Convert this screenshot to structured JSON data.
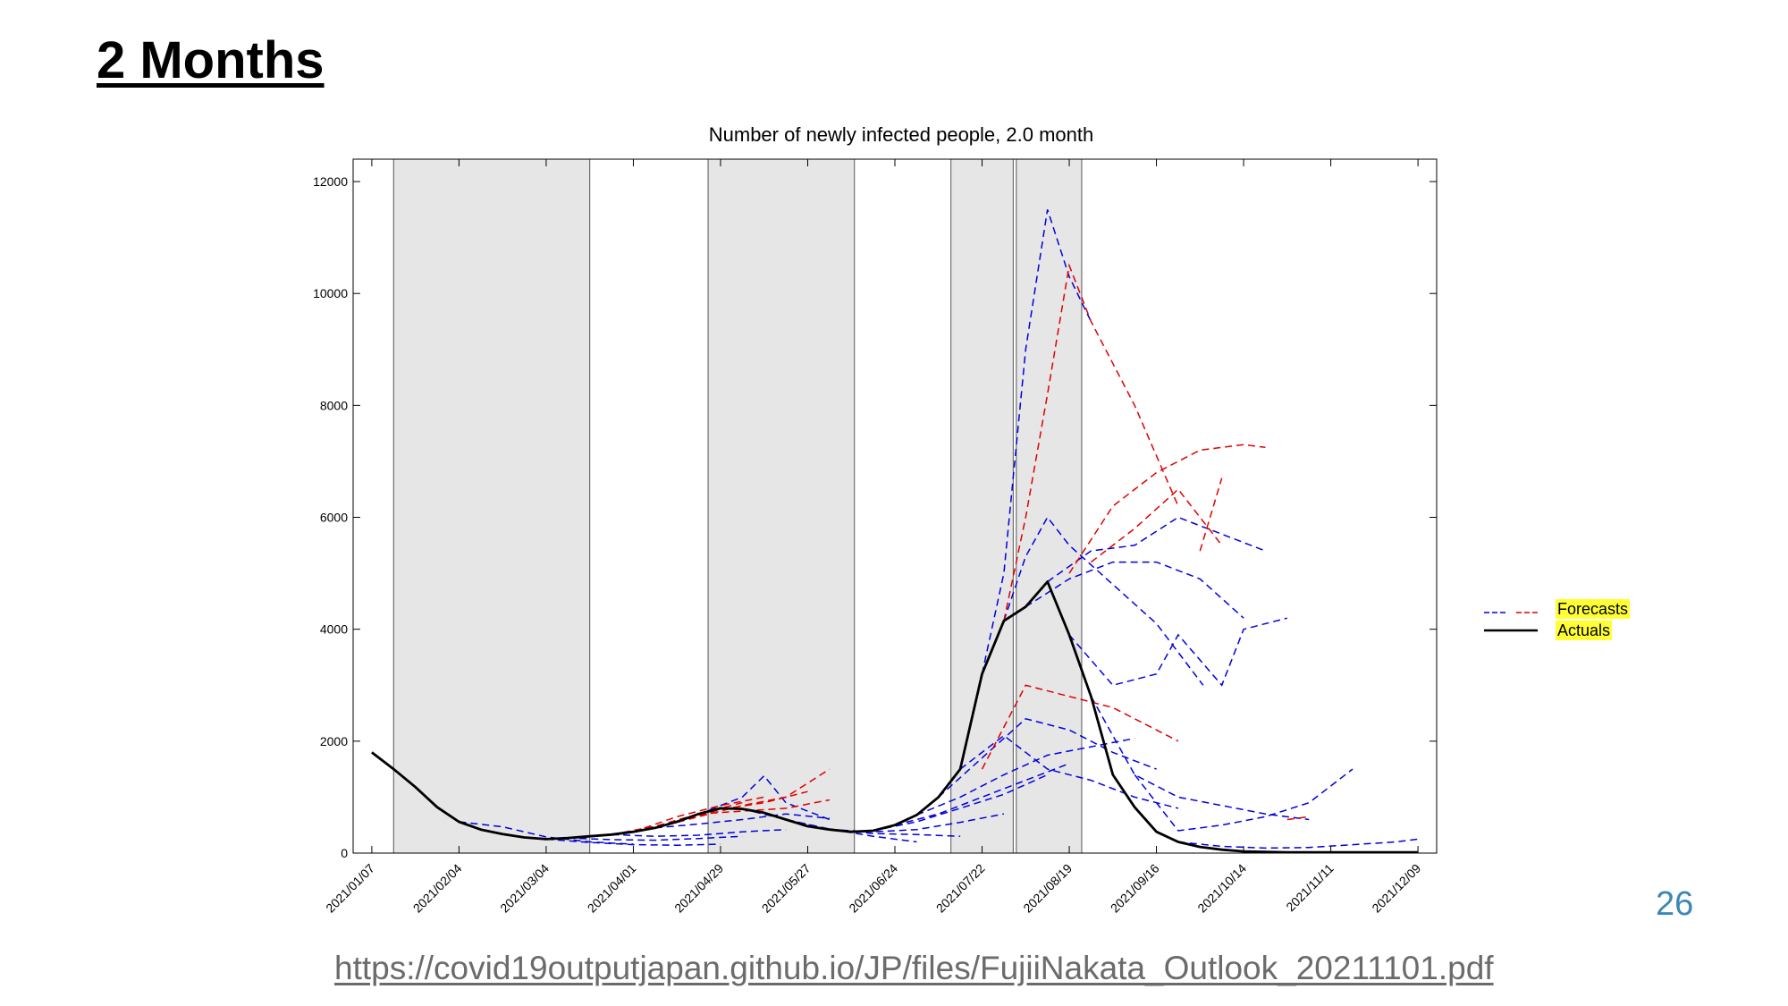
{
  "slide": {
    "title": "2 Months",
    "page_number": "26",
    "source": "https://covid19outputjapan.github.io/JP/files/FujiiNakata_Outlook_20211101.pdf"
  },
  "colors": {
    "forecast_blue": "#0000dd",
    "forecast_red": "#e00000",
    "actual": "#000000",
    "shade": "#e6e6e6",
    "highlight": "#ffff33"
  },
  "legend": {
    "forecasts_label": "Forecasts",
    "actuals_label": "Actuals",
    "forecast_marker": "—, — :",
    "actual_marker": ":"
  },
  "chart_data": {
    "type": "line",
    "title": "Number of newly infected people, 2.0 month",
    "xlabel": "",
    "ylabel": "",
    "x_domain": [
      "2021-01-01",
      "2021-12-15"
    ],
    "ylim": [
      0,
      12400
    ],
    "y_ticks": [
      0,
      2000,
      4000,
      6000,
      8000,
      10000,
      12000
    ],
    "x_ticks": [
      "2021/01/07",
      "2021/02/04",
      "2021/03/04",
      "2021/04/01",
      "2021/04/29",
      "2021/05/27",
      "2021/06/24",
      "2021/07/22",
      "2021/08/19",
      "2021/09/16",
      "2021/10/14",
      "2021/11/11",
      "2021/12/09"
    ],
    "grid": false,
    "legend_position": "right",
    "shaded_periods": [
      {
        "start": "2021-01-14",
        "end": "2021-03-18"
      },
      {
        "start": "2021-04-25",
        "end": "2021-06-11"
      },
      {
        "start": "2021-07-12",
        "end": "2021-08-01"
      },
      {
        "start": "2021-08-02",
        "end": "2021-08-23"
      }
    ],
    "actuals": {
      "name": "Actuals",
      "x": [
        "2021-01-07",
        "2021-01-14",
        "2021-01-21",
        "2021-01-28",
        "2021-02-04",
        "2021-02-11",
        "2021-02-18",
        "2021-02-25",
        "2021-03-04",
        "2021-03-11",
        "2021-03-18",
        "2021-03-25",
        "2021-04-01",
        "2021-04-08",
        "2021-04-15",
        "2021-04-22",
        "2021-04-29",
        "2021-05-06",
        "2021-05-13",
        "2021-05-20",
        "2021-05-27",
        "2021-06-03",
        "2021-06-10",
        "2021-06-17",
        "2021-06-24",
        "2021-07-01",
        "2021-07-08",
        "2021-07-15",
        "2021-07-22",
        "2021-07-29",
        "2021-08-05",
        "2021-08-12",
        "2021-08-19",
        "2021-08-26",
        "2021-09-02",
        "2021-09-09",
        "2021-09-16",
        "2021-09-23",
        "2021-09-30",
        "2021-10-07",
        "2021-10-14",
        "2021-10-21",
        "2021-10-28",
        "2021-11-04",
        "2021-11-11",
        "2021-11-18",
        "2021-11-25",
        "2021-12-02",
        "2021-12-09"
      ],
      "y": [
        1800,
        1500,
        1180,
        820,
        560,
        420,
        340,
        280,
        250,
        270,
        300,
        330,
        380,
        450,
        560,
        700,
        800,
        790,
        720,
        600,
        480,
        420,
        380,
        400,
        500,
        680,
        1000,
        1500,
        3200,
        4150,
        4400,
        4850,
        3900,
        2800,
        1400,
        820,
        380,
        200,
        110,
        60,
        30,
        20,
        15,
        15,
        15,
        15,
        15,
        15,
        15
      ]
    },
    "forecasts_blue": [
      {
        "x": [
          "2021-02-04",
          "2021-02-18",
          "2021-03-04",
          "2021-03-18",
          "2021-04-01"
        ],
        "y": [
          560,
          470,
          290,
          200,
          160
        ]
      },
      {
        "x": [
          "2021-03-04",
          "2021-03-18",
          "2021-04-01",
          "2021-04-15",
          "2021-04-29"
        ],
        "y": [
          250,
          190,
          150,
          140,
          160
        ]
      },
      {
        "x": [
          "2021-03-11",
          "2021-03-25",
          "2021-04-08",
          "2021-04-22",
          "2021-05-06"
        ],
        "y": [
          270,
          240,
          230,
          260,
          300
        ]
      },
      {
        "x": [
          "2021-03-25",
          "2021-04-08",
          "2021-04-22",
          "2021-05-06",
          "2021-05-20"
        ],
        "y": [
          330,
          300,
          320,
          380,
          420
        ]
      },
      {
        "x": [
          "2021-04-08",
          "2021-04-22",
          "2021-05-06",
          "2021-05-20",
          "2021-06-03"
        ],
        "y": [
          450,
          520,
          600,
          700,
          620
        ]
      },
      {
        "x": [
          "2021-04-22",
          "2021-05-06",
          "2021-05-13",
          "2021-05-20",
          "2021-06-03"
        ],
        "y": [
          700,
          1000,
          1380,
          900,
          600
        ]
      },
      {
        "x": [
          "2021-05-06",
          "2021-05-20",
          "2021-06-03",
          "2021-06-17",
          "2021-07-01"
        ],
        "y": [
          790,
          600,
          430,
          300,
          200
        ]
      },
      {
        "x": [
          "2021-05-20",
          "2021-06-03",
          "2021-06-17",
          "2021-07-01",
          "2021-07-15"
        ],
        "y": [
          600,
          420,
          350,
          330,
          300
        ]
      },
      {
        "x": [
          "2021-06-03",
          "2021-06-17",
          "2021-07-01",
          "2021-07-15",
          "2021-07-29"
        ],
        "y": [
          420,
          380,
          420,
          550,
          700
        ]
      },
      {
        "x": [
          "2021-06-17",
          "2021-07-01",
          "2021-07-15",
          "2021-07-29",
          "2021-08-12"
        ],
        "y": [
          400,
          560,
          800,
          1050,
          1400
        ]
      },
      {
        "x": [
          "2021-06-24",
          "2021-07-08",
          "2021-07-22",
          "2021-08-05",
          "2021-08-19"
        ],
        "y": [
          500,
          700,
          1000,
          1300,
          1600
        ]
      },
      {
        "x": [
          "2021-07-01",
          "2021-07-15",
          "2021-07-29",
          "2021-08-12",
          "2021-08-26",
          "2021-09-09"
        ],
        "y": [
          680,
          1000,
          1400,
          1750,
          1900,
          2050
        ]
      },
      {
        "x": [
          "2021-07-08",
          "2021-07-22",
          "2021-08-05",
          "2021-08-19",
          "2021-09-02",
          "2021-09-16"
        ],
        "y": [
          1000,
          1700,
          2400,
          2200,
          1800,
          1500
        ]
      },
      {
        "x": [
          "2021-07-15",
          "2021-07-29",
          "2021-08-12",
          "2021-08-26",
          "2021-09-09",
          "2021-09-23"
        ],
        "y": [
          1500,
          2100,
          1500,
          1300,
          1000,
          800
        ]
      },
      {
        "x": [
          "2021-07-22",
          "2021-07-29",
          "2021-08-05",
          "2021-08-12",
          "2021-08-19",
          "2021-08-26"
        ],
        "y": [
          3200,
          5000,
          9000,
          11500,
          10300,
          9500
        ]
      },
      {
        "x": [
          "2021-07-29",
          "2021-08-05",
          "2021-08-12",
          "2021-08-19",
          "2021-09-02",
          "2021-09-16",
          "2021-10-01"
        ],
        "y": [
          4150,
          5300,
          6000,
          5500,
          4800,
          4100,
          3000
        ]
      },
      {
        "x": [
          "2021-08-05",
          "2021-08-19",
          "2021-09-02",
          "2021-09-16",
          "2021-09-30",
          "2021-10-14"
        ],
        "y": [
          4400,
          4900,
          5200,
          5200,
          4900,
          4200
        ]
      },
      {
        "x": [
          "2021-08-12",
          "2021-08-26",
          "2021-09-09",
          "2021-09-23",
          "2021-10-07",
          "2021-10-21"
        ],
        "y": [
          4850,
          5400,
          5500,
          6000,
          5700,
          5400
        ]
      },
      {
        "x": [
          "2021-08-19",
          "2021-09-02",
          "2021-09-16",
          "2021-09-23",
          "2021-10-07",
          "2021-10-14",
          "2021-10-28"
        ],
        "y": [
          3900,
          3000,
          3200,
          3900,
          3000,
          4000,
          4200
        ]
      },
      {
        "x": [
          "2021-08-26",
          "2021-09-09",
          "2021-09-23",
          "2021-10-07",
          "2021-10-21",
          "2021-11-04"
        ],
        "y": [
          2800,
          1400,
          1000,
          850,
          700,
          600
        ]
      },
      {
        "x": [
          "2021-09-09",
          "2021-09-23",
          "2021-10-07",
          "2021-10-21",
          "2021-11-04",
          "2021-11-18"
        ],
        "y": [
          1400,
          400,
          500,
          650,
          900,
          1500
        ]
      },
      {
        "x": [
          "2021-09-23",
          "2021-10-07",
          "2021-10-21",
          "2021-11-04",
          "2021-11-18",
          "2021-12-02",
          "2021-12-09"
        ],
        "y": [
          200,
          120,
          90,
          100,
          150,
          200,
          250
        ]
      }
    ],
    "forecasts_red": [
      {
        "x": [
          "2021-03-25",
          "2021-04-08",
          "2021-04-22",
          "2021-05-06"
        ],
        "y": [
          330,
          480,
          700,
          900
        ]
      },
      {
        "x": [
          "2021-04-01",
          "2021-04-15",
          "2021-04-29",
          "2021-05-13"
        ],
        "y": [
          380,
          650,
          850,
          1000
        ]
      },
      {
        "x": [
          "2021-04-08",
          "2021-04-22",
          "2021-05-06",
          "2021-05-20",
          "2021-06-03"
        ],
        "y": [
          450,
          650,
          850,
          1000,
          1500
        ]
      },
      {
        "x": [
          "2021-04-15",
          "2021-04-29",
          "2021-05-13",
          "2021-05-27"
        ],
        "y": [
          560,
          780,
          900,
          1100
        ]
      },
      {
        "x": [
          "2021-04-22",
          "2021-05-06",
          "2021-05-20",
          "2021-06-03"
        ],
        "y": [
          700,
          750,
          800,
          950
        ]
      },
      {
        "x": [
          "2021-07-22",
          "2021-08-05",
          "2021-08-19",
          "2021-09-02",
          "2021-09-16",
          "2021-09-23"
        ],
        "y": [
          1500,
          3000,
          2800,
          2600,
          2200,
          2000
        ]
      },
      {
        "x": [
          "2021-07-29",
          "2021-08-05",
          "2021-08-12",
          "2021-08-19",
          "2021-08-26",
          "2021-09-09",
          "2021-09-23"
        ],
        "y": [
          4150,
          6000,
          8200,
          10500,
          9500,
          8000,
          6200
        ]
      },
      {
        "x": [
          "2021-08-19",
          "2021-09-02",
          "2021-09-16",
          "2021-09-30",
          "2021-10-14",
          "2021-10-21"
        ],
        "y": [
          5000,
          6200,
          6800,
          7200,
          7300,
          7250
        ]
      },
      {
        "x": [
          "2021-08-26",
          "2021-09-09",
          "2021-09-23",
          "2021-10-07"
        ],
        "y": [
          5200,
          5800,
          6500,
          5500
        ]
      },
      {
        "x": [
          "2021-09-30",
          "2021-10-07"
        ],
        "y": [
          5400,
          6700
        ]
      },
      {
        "x": [
          "2021-10-28",
          "2021-11-04"
        ],
        "y": [
          600,
          650
        ]
      }
    ]
  }
}
